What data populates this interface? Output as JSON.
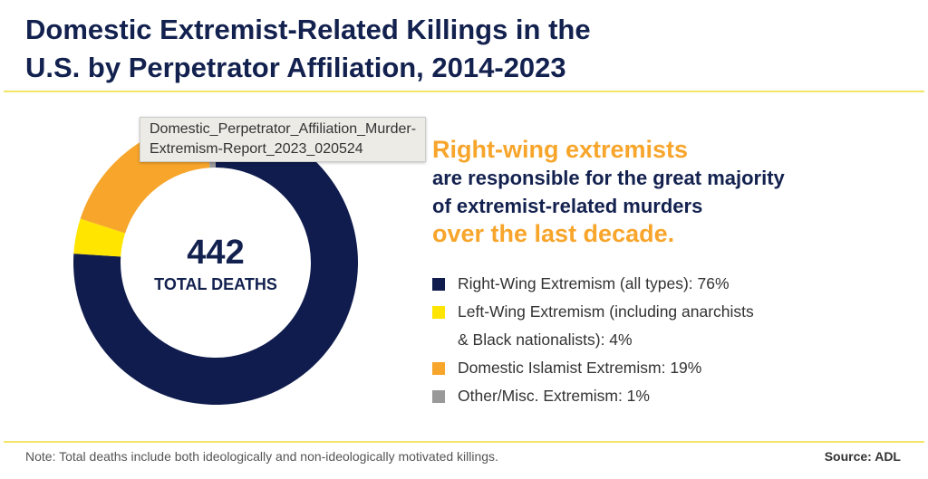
{
  "chart_data": {
    "type": "pie",
    "title": "Domestic Extremist-Related Killings in the U.S. by Perpetrator Affiliation, 2014-2023",
    "total": "442",
    "total_label": "TOTAL DEATHS",
    "slices": [
      {
        "label": "Right-Wing Extremism (all types): 76%",
        "value": 76,
        "color": "#0f1c4d"
      },
      {
        "label": "Left-Wing Extremism (including anarchists & Black nationalists): 4%",
        "value": 4,
        "color": "#ffe500"
      },
      {
        "label": "Domestic Islamist Extremism: 19%",
        "value": 19,
        "color": "#f7a52b"
      },
      {
        "label": "Other/Misc. Extremism: 1%",
        "value": 1,
        "color": "#999999"
      }
    ]
  },
  "title_line1": "Domestic Extremist-Related Killings in the",
  "title_line2": "U.S. by Perpetrator Affiliation, 2014-2023",
  "headline": {
    "l1": "Right-wing extremists",
    "l2": "are responsible for the great majority",
    "l3": "of extremist-related murders",
    "l4": "over the last decade."
  },
  "legend_l2b": "& Black nationalists): 4%",
  "legend_l2a": "Left-Wing Extremism (including anarchists",
  "tooltip": {
    "l1": "Domestic_Perpetrator_Affiliation_Murder-",
    "l2": "Extremism-Report_2023_020524"
  },
  "note": "Note: Total deaths include both ideologically and non-ideologically motivated killings.",
  "source": "Source: ADL"
}
